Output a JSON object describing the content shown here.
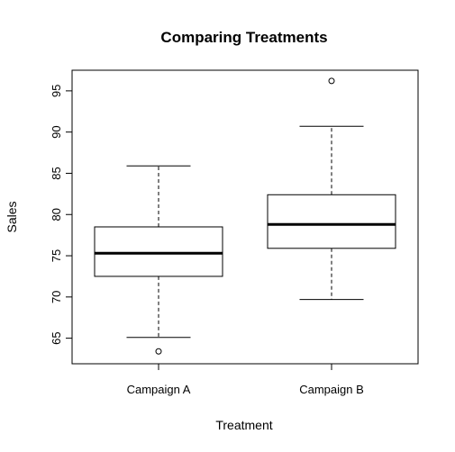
{
  "chart_data": {
    "type": "boxplot",
    "title": "Comparing Treatments",
    "xlabel": "Treatment",
    "ylabel": "Sales",
    "categories": [
      "Campaign A",
      "Campaign B"
    ],
    "boxes": [
      {
        "name": "Campaign A",
        "min": 65.1,
        "q1": 72.5,
        "median": 75.3,
        "q3": 78.5,
        "max": 85.9,
        "outliers": [
          63.4
        ]
      },
      {
        "name": "Campaign B",
        "min": 69.7,
        "q1": 75.9,
        "median": 78.8,
        "q3": 82.4,
        "max": 90.7,
        "outliers": [
          96.2
        ]
      }
    ],
    "y_ticks": [
      65,
      70,
      75,
      80,
      85,
      90,
      95
    ],
    "ylim": [
      61.9,
      97.5
    ],
    "grid": false,
    "legend": "none"
  }
}
